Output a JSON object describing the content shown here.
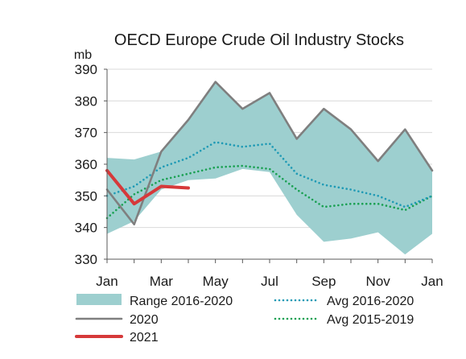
{
  "chart_data": {
    "type": "line",
    "title": "OECD Europe Crude Oil Industry Stocks",
    "unit_label": "mb",
    "ylim": [
      330,
      390
    ],
    "yticks": [
      330,
      340,
      350,
      360,
      370,
      380,
      390
    ],
    "xlim": [
      0,
      12
    ],
    "xtick_labels": [
      "Jan",
      "Mar",
      "May",
      "Jul",
      "Sep",
      "Nov",
      "Jan"
    ],
    "xtick_positions": [
      0,
      2,
      4,
      6,
      8,
      10,
      12
    ],
    "months_x": [
      0,
      1,
      2,
      3,
      4,
      5,
      6,
      7,
      8,
      9,
      10,
      11,
      12
    ],
    "range": {
      "name": "Range 2016-2020",
      "color": "#9dcfcf",
      "upper": [
        362,
        361.5,
        364,
        374,
        386,
        377.5,
        382.5,
        368,
        377.5,
        371,
        361,
        371,
        358
      ],
      "lower": [
        338,
        342,
        352,
        355,
        355.5,
        358.5,
        357.5,
        344,
        335.5,
        336.5,
        338.5,
        331.5,
        338
      ]
    },
    "series": [
      {
        "name": "2020",
        "color": "#7f7f7f",
        "style": "solid",
        "values": [
          352,
          341,
          364,
          374,
          386,
          377.5,
          382.5,
          368,
          377.5,
          371,
          361,
          371,
          358
        ]
      },
      {
        "name": "2021",
        "color": "#d6393a",
        "style": "solid",
        "x": [
          0,
          1,
          2,
          3
        ],
        "values": [
          358,
          347.5,
          353,
          352.5
        ]
      },
      {
        "name": "Avg 2016-2020",
        "color": "#1f9ab5",
        "style": "dotted",
        "values": [
          350,
          353,
          359,
          362,
          367,
          365.5,
          366.5,
          357,
          353.5,
          352,
          350,
          346.5,
          350
        ]
      },
      {
        "name": "Avg 2015-2019",
        "color": "#1aa052",
        "style": "dotted",
        "values": [
          343,
          350.5,
          355,
          357,
          359,
          359.5,
          358.5,
          352,
          346.5,
          347.5,
          347.5,
          345.5,
          350
        ]
      }
    ],
    "grid": "horizontal",
    "legend": "bottom"
  }
}
